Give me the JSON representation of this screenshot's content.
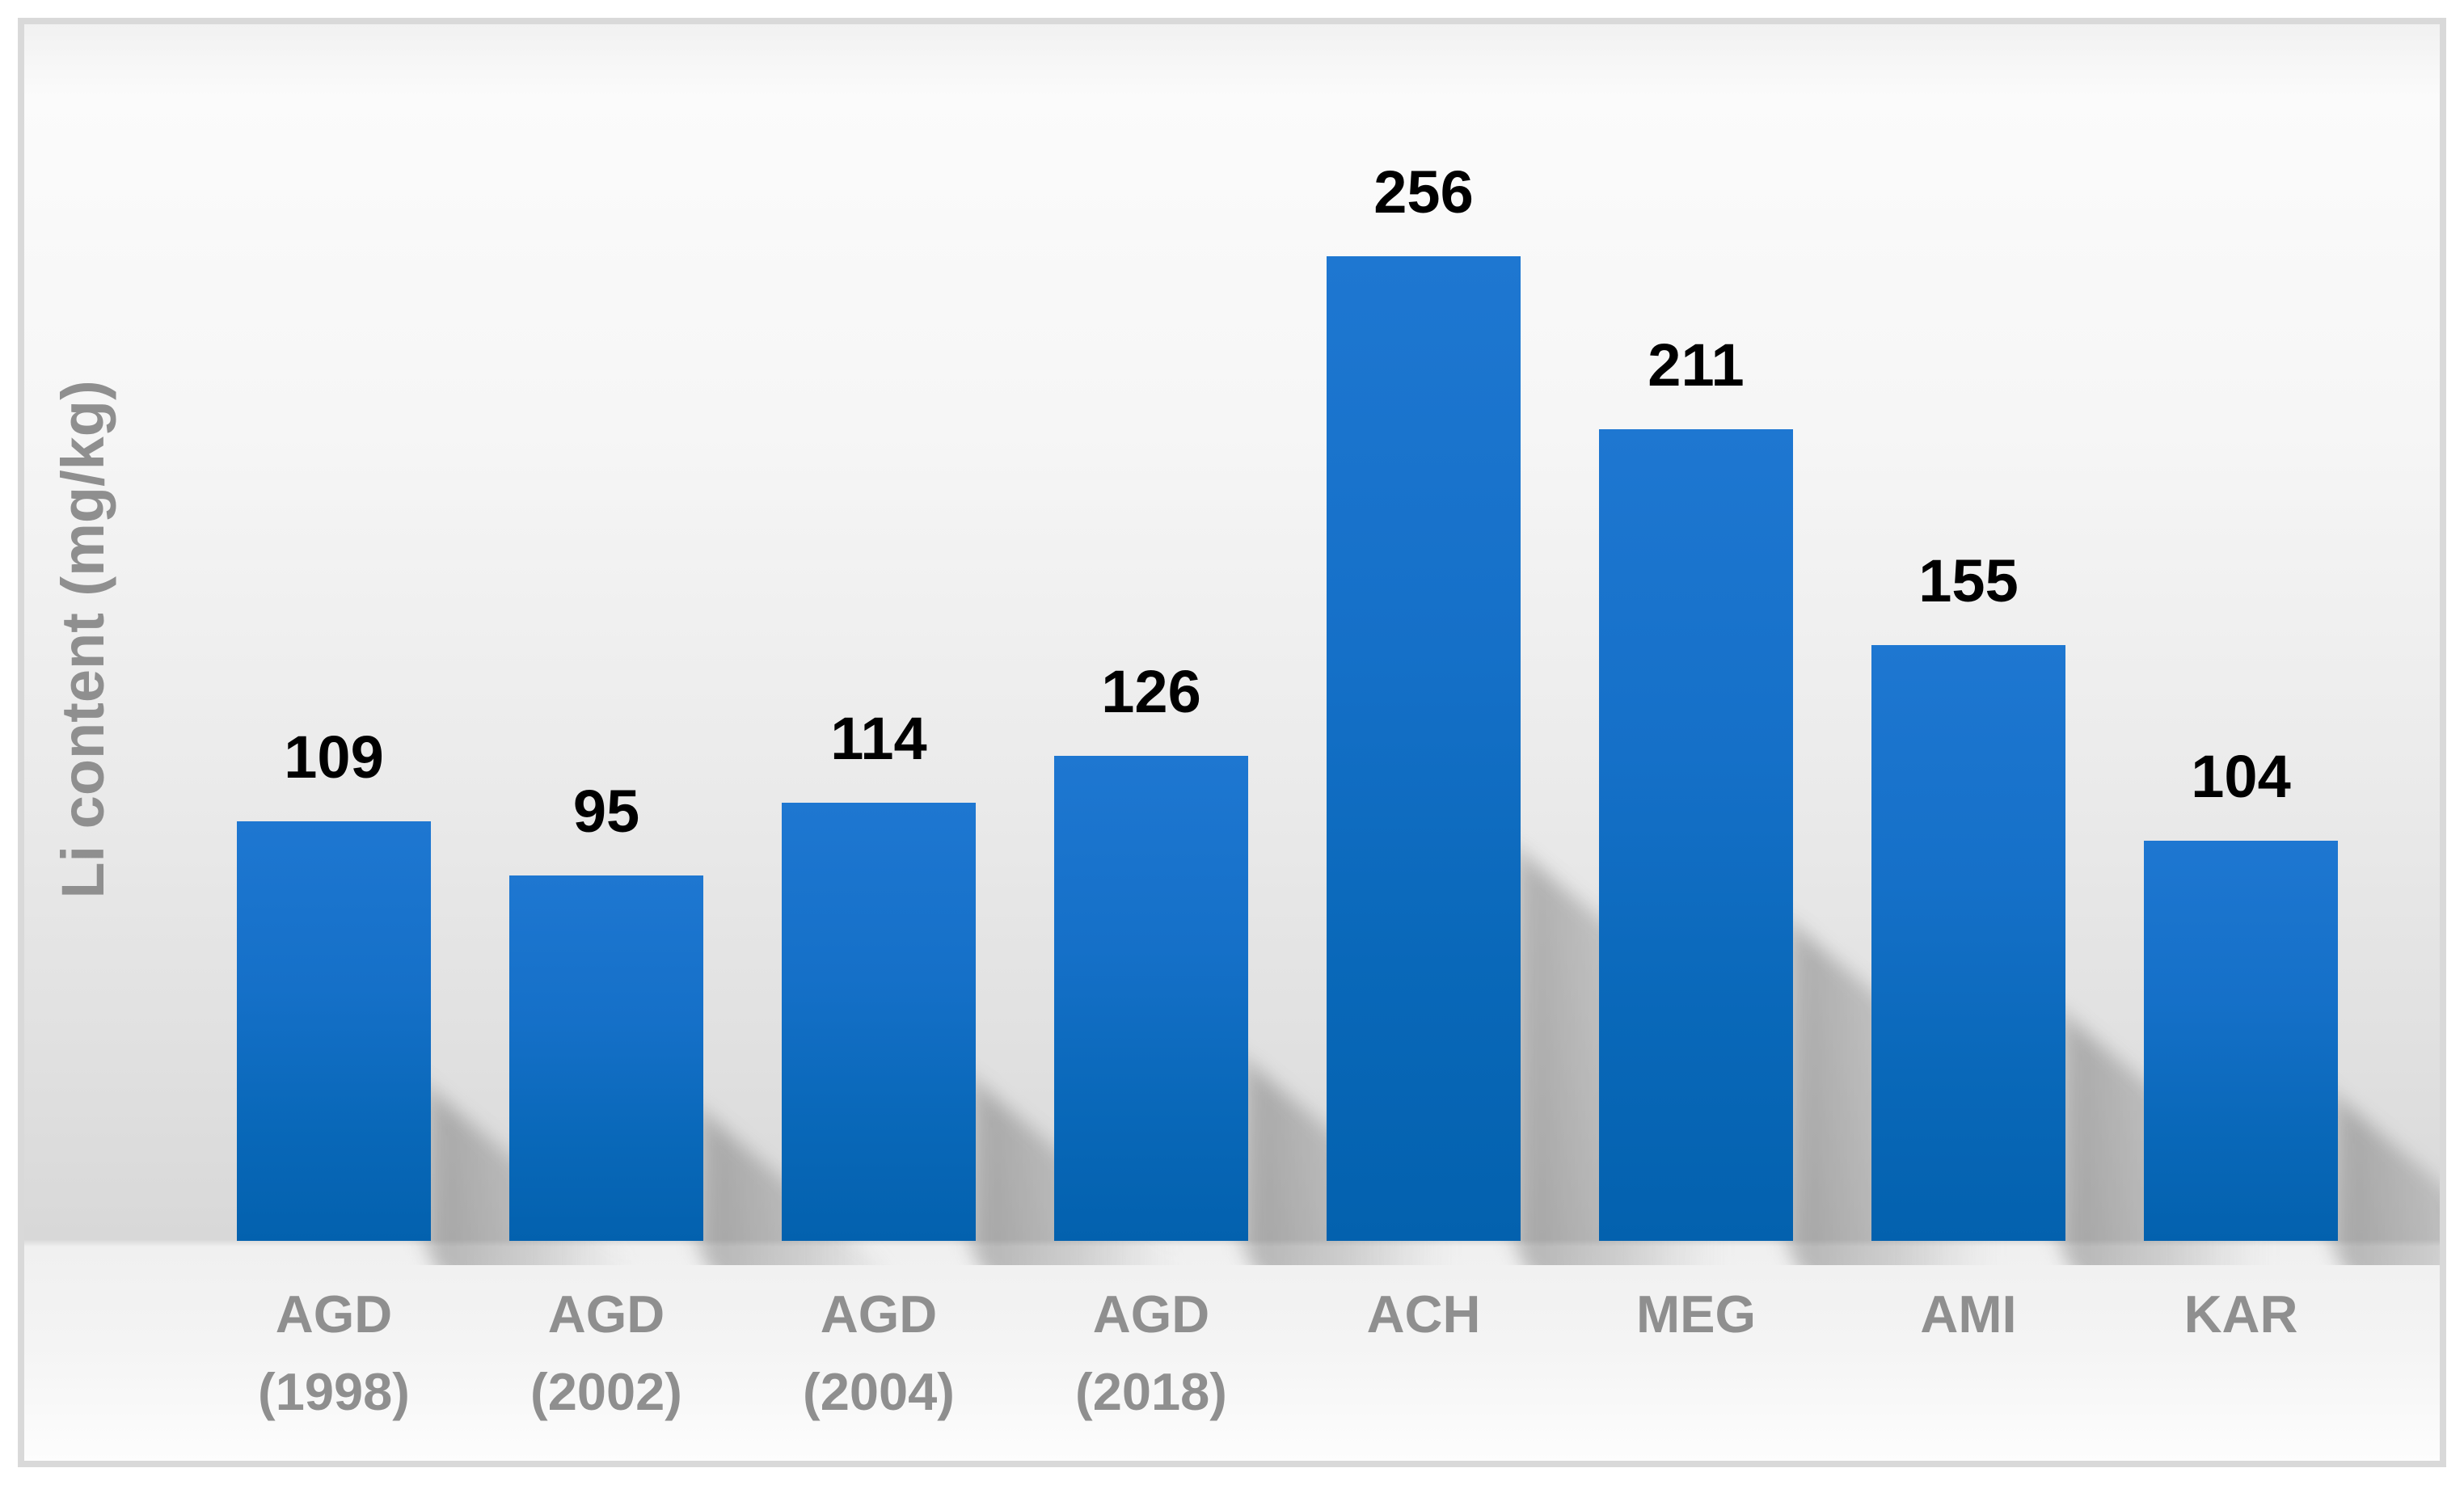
{
  "chart_data": {
    "type": "bar",
    "title": "",
    "xlabel": "",
    "ylabel": "Li content (mg/kg)",
    "categories": [
      "AGD (1998)",
      "AGD (2002)",
      "AGD (2004)",
      "AGD (2018)",
      "ACH",
      "MEG",
      "AMI",
      "KAR"
    ],
    "categories_display": [
      {
        "line1": "AGD",
        "line2": "(1998)"
      },
      {
        "line1": "AGD",
        "line2": "(2002)"
      },
      {
        "line1": "AGD",
        "line2": "(2004)"
      },
      {
        "line1": "AGD",
        "line2": "(2018)"
      },
      {
        "line1": "ACH",
        "line2": ""
      },
      {
        "line1": "MEG",
        "line2": ""
      },
      {
        "line1": "AMI",
        "line2": ""
      },
      {
        "line1": "KAR",
        "line2": ""
      }
    ],
    "values": [
      109,
      95,
      114,
      126,
      256,
      211,
      155,
      104
    ],
    "data_labels": true,
    "ylim": [
      0,
      280
    ],
    "grid": false,
    "legend": false,
    "legend_position": "none",
    "colors": {
      "bar_top": "#1e77d1",
      "bar_bottom": "#0361ae",
      "value_label": "#000000",
      "category_label": "#8f8f8f",
      "axis_title": "#8f8f8f",
      "frame_border": "#d9d9d9"
    }
  }
}
